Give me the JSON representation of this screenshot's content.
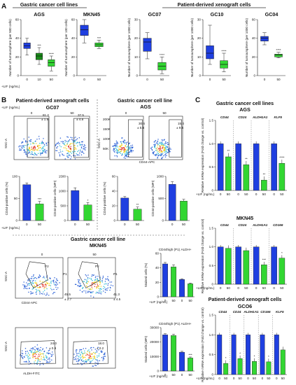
{
  "panel_a": {
    "letter": "A",
    "group_cell_lines": "Gastric cancer cell lines",
    "group_pdx": "Patient-derived xenograft cells",
    "lif_label": "+LIF (ng/mL)",
    "plots": [
      {
        "title": "AGS",
        "ylabel": "Number of tumoursphere (per 500 cells)",
        "xticks": [
          "0",
          "10",
          "50"
        ],
        "yticks": [
          "0",
          "20",
          "40",
          "60"
        ],
        "ylim": [
          0,
          60
        ],
        "colors": [
          "#1f3fe0",
          "#1a8a1a",
          "#32d632"
        ],
        "boxes": [
          [
            22,
            29,
            32,
            35,
            40
          ],
          [
            12,
            17,
            21,
            24,
            30
          ],
          [
            5,
            10,
            14,
            17,
            21
          ]
        ],
        "stars": [
          "",
          "***",
          "****"
        ]
      },
      {
        "title": "MKN45",
        "ylabel": "Number of tumoursphere (per 100 cells)",
        "xticks": [
          "0",
          "50"
        ],
        "yticks": [
          "0",
          "20",
          "40",
          "60"
        ],
        "ylim": [
          0,
          60
        ],
        "colors": [
          "#1f3fe0",
          "#32d632"
        ],
        "boxes": [
          [
            35,
            43,
            49,
            54,
            60
          ],
          [
            29,
            31,
            33,
            35,
            38
          ]
        ],
        "stars": [
          "",
          "***"
        ]
      },
      {
        "title": "GC07",
        "ylabel": "Number of tumoursphere (per 1000 cells)",
        "xticks": [
          "0",
          "50"
        ],
        "yticks": [
          "0",
          "10",
          "20",
          "30"
        ],
        "ylim": [
          0,
          30
        ],
        "colors": [
          "#1f3fe0",
          "#32d632"
        ],
        "boxes": [
          [
            9,
            13,
            18,
            20,
            23
          ],
          [
            1,
            3,
            5,
            7,
            10
          ]
        ],
        "stars": [
          "",
          "****"
        ]
      },
      {
        "title": "GC10",
        "ylabel": "Number of tumoursphere (per 1000 cells)",
        "xticks": [
          "0",
          "50"
        ],
        "yticks": [
          "0",
          "10",
          "20",
          "30"
        ],
        "ylim": [
          0,
          30
        ],
        "colors": [
          "#1f3fe0",
          "#32d632"
        ],
        "boxes": [
          [
            6,
            9,
            12,
            16,
            27
          ],
          [
            2,
            4,
            6,
            8,
            12
          ]
        ],
        "stars": [
          "",
          "****"
        ]
      },
      {
        "title": "GC04",
        "ylabel": "Number of tumoursphere (per 1000 cells)",
        "xticks": [
          "0",
          "50"
        ],
        "yticks": [
          "0",
          "20",
          "40",
          "60"
        ],
        "ylim": [
          0,
          60
        ],
        "colors": [
          "#1f3fe0",
          "#32d632"
        ],
        "boxes": [
          [
            33,
            37,
            40,
            42,
            46
          ],
          [
            19,
            20,
            22,
            23,
            25
          ]
        ],
        "stars": [
          "",
          "****"
        ]
      }
    ]
  },
  "panel_b": {
    "letter": "B",
    "pdx_title": "Patient-derived xenograft cells",
    "gc07": "GC07",
    "cell_line_title": "Gastric cancer cell line",
    "ags": "AGS",
    "mkn45_title": "Gastric cancer cell line",
    "mkn45": "MKN45",
    "lif_label": "+LIF (ng/mL)",
    "ssc_label": "SSC-A",
    "cd44_label": "CD44-APC",
    "aldh_label": "ALDH-FITC",
    "zero": "0",
    "fifty": "50",
    "yt_200k": "200K",
    "yt_150k": "150K",
    "yt_100k": "100K",
    "yt_50k": "50K",
    "gc07_pct": [
      "81.2",
      "± 1.9",
      "37.5",
      "± 4.8"
    ],
    "ags_pct": [
      "30.6",
      "± 5.6",
      "15.4",
      "± 9.5"
    ],
    "mkn_gate": [
      "P2",
      "P1",
      "45.5",
      "± 2.7",
      "P2",
      "P1",
      "41.3",
      "± 4.5"
    ],
    "aldh_pct": [
      "24.0",
      "± 0.9",
      "18.0",
      "± 0.2"
    ],
    "bars_gc07_pct": {
      "ylabel": "CD44-positive cells (%)",
      "yticks": [
        "0",
        "50",
        "100"
      ],
      "ymax": 100,
      "values": [
        81.2,
        37.5
      ],
      "errors": [
        4,
        6
      ],
      "stars": [
        "",
        "***"
      ]
    },
    "bars_gc07_mfi": {
      "ylabel": "CD44-positive cells (MFI)",
      "yticks": [
        "0",
        "500",
        "1000",
        "1500"
      ],
      "ymax": 1500,
      "values": [
        1020,
        530
      ],
      "errors": [
        90,
        80
      ],
      "stars": [
        "",
        "*"
      ]
    },
    "bars_ags_pct": {
      "ylabel": "CD44-positive cells (%)",
      "yticks": [
        "0",
        "20",
        "40",
        "60"
      ],
      "ymax": 60,
      "values": [
        30.6,
        15.4
      ],
      "errors": [
        2,
        3
      ],
      "stars": [
        "",
        "**"
      ]
    },
    "bars_ags_mfi": {
      "ylabel": "CD44-positive cells (MFI)",
      "yticks": [
        "0",
        "500",
        "1000"
      ],
      "ymax": 1000,
      "values": [
        820,
        440
      ],
      "errors": [
        60,
        40
      ],
      "stars": [
        "",
        ""
      ]
    },
    "mkn_pct": {
      "ylabel": "Stained cells (%)",
      "yticks": [
        "0",
        "20",
        "40",
        "60"
      ],
      "ymax": 60,
      "groups": [
        "CD44high (P1)",
        "ALDH+"
      ],
      "values": [
        45.5,
        41.3,
        24.0,
        18.0
      ],
      "errors": [
        2,
        3,
        1,
        1
      ]
    },
    "mkn_mfi": {
      "ylabel": "Stained cells (MFI)",
      "yticks": [
        "0",
        "10000",
        "20000",
        "30000"
      ],
      "ymax": 30000,
      "groups": [
        "CD44high (P1)",
        "ALDH+"
      ],
      "values": [
        25000,
        24500,
        13000,
        9000
      ],
      "errors": [
        800,
        900,
        600,
        700
      ],
      "stars": [
        "",
        "",
        "",
        "***"
      ]
    }
  },
  "panel_c": {
    "letter": "C",
    "cell_lines_title": "Gastric cancer cell lines",
    "ags": "AGS",
    "mkn45": "MKN45",
    "pdx_title": "Patient-derived xenograft cells",
    "gco6": "GCO6",
    "ylabel": "Relative mRNA expression (Fold change vs. control)",
    "lif_label": "+LIF (ng/mL)",
    "yticks": [
      "0",
      "0.5",
      "1.0",
      "1.5"
    ],
    "xticks": [
      "0",
      "50"
    ],
    "ags_genes": [
      "CD44",
      "CD24",
      "ALDH1A1",
      "KLF5"
    ],
    "ags_green": [
      0.72,
      0.55,
      0.22,
      0.58
    ],
    "ags_stars": [
      "**",
      "**",
      "**",
      "****"
    ],
    "mkn_genes": [
      "CD44",
      "CD24",
      "ALDH1A1",
      "CD166"
    ],
    "mkn_green": [
      0.96,
      0.9,
      0.52,
      0.7
    ],
    "mkn_stars": [
      "",
      "",
      "***",
      "*"
    ],
    "gco6_genes": [
      "CD44",
      "CD24",
      "ALDH1A1",
      "CD166",
      "KLF5"
    ],
    "gco6_green": [
      0.28,
      0.4,
      0.33,
      0.32,
      0.62
    ],
    "gco6_stars": [
      "*",
      "*",
      "*",
      "*",
      ""
    ]
  }
}
